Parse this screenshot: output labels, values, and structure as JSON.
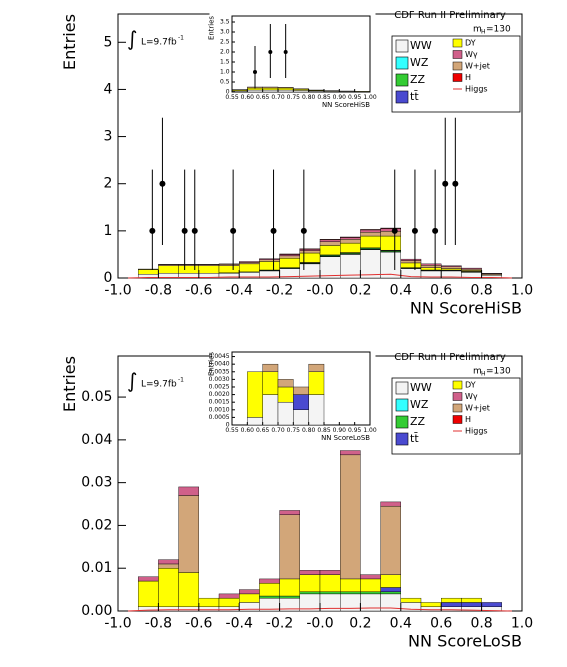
{
  "chart_data": [
    {
      "type": "histogram",
      "title": "CDF Run II Preliminary",
      "x_label": "NN ScoreHiSB",
      "y_label": "Entries",
      "integral": "∫",
      "lumi": "L=9.7fb",
      "lumi_sup": "-1",
      "mass_label": "m",
      "mass_sub": "H",
      "mass_value": "=130",
      "xlim": [
        -1,
        1
      ],
      "ylim": [
        0,
        5.6
      ],
      "xticks": [
        {
          "value": -1,
          "label": "-1.0"
        },
        -0.8,
        -0.6,
        -0.4,
        -0.2,
        {
          "value": 0,
          "label": "-0.0"
        },
        0.2,
        0.4,
        0.6,
        0.8,
        {
          "value": 1,
          "label": "1.0"
        }
      ],
      "yticks": [
        0,
        1,
        2,
        3,
        4,
        5
      ],
      "bins": [
        -1,
        -0.9,
        -0.8,
        -0.7,
        -0.6,
        -0.5,
        -0.4,
        -0.3,
        -0.2,
        -0.1,
        0,
        0.1,
        0.2,
        0.3,
        0.4,
        0.5,
        0.6,
        0.7,
        0.8,
        0.9,
        1
      ],
      "series": [
        {
          "name": "WW",
          "color": "#f4f4f4",
          "values": [
            0,
            0.08,
            0.1,
            0.1,
            0.1,
            0.1,
            0.12,
            0.15,
            0.2,
            0.3,
            0.45,
            0.5,
            0.6,
            0.55,
            0.2,
            0.15,
            0.15,
            0.12,
            0.06,
            0
          ]
        },
        {
          "name": "WZ",
          "color": "#33ffff",
          "values": [
            0,
            0,
            0,
            0,
            0,
            0,
            0,
            0.01,
            0.01,
            0.01,
            0.01,
            0.01,
            0.01,
            0.01,
            0,
            0,
            0,
            0,
            0,
            0
          ]
        },
        {
          "name": "ZZ",
          "color": "#33cc33",
          "values": [
            0,
            0,
            0,
            0,
            0,
            0.01,
            0.01,
            0.01,
            0.01,
            0.01,
            0.02,
            0.02,
            0.02,
            0.02,
            0.01,
            0.01,
            0.01,
            0.01,
            0,
            0
          ]
        },
        {
          "name": "tt̄",
          "color": "#4a4ad0",
          "values": [
            0,
            0,
            0,
            0,
            0,
            0,
            0,
            0,
            0,
            0.01,
            0.01,
            0.01,
            0.01,
            0.01,
            0.01,
            0.01,
            0.01,
            0.01,
            0,
            0
          ]
        },
        {
          "name": "DY",
          "color": "#ffff00",
          "values": [
            0,
            0.1,
            0.16,
            0.16,
            0.16,
            0.15,
            0.17,
            0.18,
            0.2,
            0.2,
            0.2,
            0.2,
            0.25,
            0.3,
            0.1,
            0.05,
            0.03,
            0.02,
            0.01,
            0
          ]
        },
        {
          "name": "W+jet",
          "color": "#d2a679",
          "values": [
            0,
            0.01,
            0.02,
            0.02,
            0.02,
            0.03,
            0.03,
            0.04,
            0.05,
            0.05,
            0.08,
            0.08,
            0.08,
            0.1,
            0.05,
            0.05,
            0.04,
            0.03,
            0.02,
            0
          ]
        },
        {
          "name": "Wγ",
          "color": "#d0608a",
          "values": [
            0,
            0,
            0.01,
            0.01,
            0.01,
            0.01,
            0.02,
            0.02,
            0.03,
            0.03,
            0.04,
            0.04,
            0.05,
            0.06,
            0.03,
            0.03,
            0.02,
            0.02,
            0.01,
            0
          ]
        },
        {
          "name": "H",
          "color": "#ee0000",
          "values": [
            0,
            0,
            0,
            0,
            0,
            0,
            0,
            0,
            0.01,
            0.01,
            0.01,
            0.01,
            0.01,
            0.01,
            0,
            0,
            0,
            0,
            0,
            0
          ]
        },
        {
          "name": "Higgs",
          "color": "#e03030",
          "style": "line",
          "values": [
            0,
            0.01,
            0.01,
            0.01,
            0.01,
            0.02,
            0.02,
            0.02,
            0.03,
            0.04,
            0.05,
            0.06,
            0.07,
            0.08,
            0.03,
            0.02,
            0.02,
            0.01,
            0.01,
            0
          ]
        }
      ],
      "points": {
        "x": [
          -0.83,
          -0.78,
          -0.67,
          -0.62,
          -0.43,
          -0.23,
          -0.08,
          0.37,
          0.47,
          0.57,
          0.62,
          0.67
        ],
        "y": [
          1,
          2,
          1,
          1,
          1,
          1,
          1,
          1,
          1,
          1,
          2,
          2
        ],
        "err_low": [
          0.83,
          1.3,
          0.83,
          0.83,
          0.83,
          0.83,
          0.83,
          0.83,
          0.83,
          0.83,
          1.3,
          1.3
        ],
        "err_high": [
          1.3,
          1.4,
          1.3,
          1.3,
          1.3,
          1.3,
          1.3,
          1.3,
          1.3,
          1.3,
          1.4,
          1.4
        ]
      },
      "inset": {
        "x_label": "NN ScoreHiSB",
        "y_label": "Entries",
        "xlim": [
          0.55,
          1
        ],
        "ylim": [
          0,
          3.8
        ],
        "xticks": [
          0.55,
          {
            "value": 0.6,
            "label": "0.60"
          },
          0.65,
          {
            "value": 0.7,
            "label": "0.70"
          },
          0.75,
          {
            "value": 0.8,
            "label": "0.80"
          },
          0.85,
          {
            "value": 0.9,
            "label": "0.90"
          },
          0.95,
          {
            "value": 1,
            "label": "1.00"
          }
        ],
        "yticks": [
          0,
          0.5,
          {
            "value": 1,
            "label": "1.0"
          },
          1.5,
          {
            "value": 2,
            "label": "2.0"
          },
          2.5,
          {
            "value": 3,
            "label": "3.0"
          },
          3.5
        ],
        "bins": [
          0.55,
          0.6,
          0.65,
          0.7,
          0.75,
          0.8,
          0.85,
          0.9,
          0.95,
          1
        ],
        "series": [
          {
            "color": "#f4f4f4",
            "values": [
              0.05,
              0.1,
              0.1,
              0.1,
              0.08,
              0.05,
              0.04,
              0.03,
              0.02
            ]
          },
          {
            "color": "#ffff00",
            "values": [
              0.05,
              0.1,
              0.1,
              0.1,
              0.06,
              0.03,
              0.02,
              0.01,
              0.01
            ]
          },
          {
            "color": "#d2a679",
            "values": [
              0.02,
              0.05,
              0.05,
              0.04,
              0.03,
              0.02,
              0.01,
              0.01,
              0
            ]
          }
        ],
        "points": {
          "x": [
            0.625,
            0.675,
            0.725
          ],
          "y": [
            1,
            2,
            2
          ],
          "err_low": [
            0.83,
            1.3,
            1.3
          ],
          "err_high": [
            1.3,
            1.4,
            1.4
          ]
        }
      }
    },
    {
      "type": "histogram",
      "title": "CDF Run II Preliminary",
      "x_label": "NN ScoreLoSB",
      "y_label": "Entries",
      "integral": "∫",
      "lumi": "L=9.7fb",
      "lumi_sup": "-1",
      "mass_label": "m",
      "mass_sub": "H",
      "mass_value": "=130",
      "xlim": [
        -1,
        1
      ],
      "ylim": [
        0,
        0.0596
      ],
      "xticks": [
        {
          "value": -1,
          "label": "-1.0"
        },
        -0.8,
        -0.6,
        -0.4,
        -0.2,
        {
          "value": 0,
          "label": "-0.0"
        },
        0.2,
        0.4,
        0.6,
        0.8,
        {
          "value": 1,
          "label": "1.0"
        }
      ],
      "yticks": [
        {
          "value": 0,
          "label": "0.00"
        },
        0.01,
        0.02,
        0.03,
        0.04,
        0.05
      ],
      "bins": [
        -1,
        -0.9,
        -0.8,
        -0.7,
        -0.6,
        -0.5,
        -0.4,
        -0.3,
        -0.2,
        -0.1,
        0,
        0.1,
        0.2,
        0.3,
        0.4,
        0.5,
        0.6,
        0.7,
        0.8,
        0.9,
        1
      ],
      "series": [
        {
          "name": "WW",
          "color": "#f4f4f4",
          "values": [
            0,
            0.001,
            0.001,
            0.001,
            0.001,
            0.001,
            0.002,
            0.003,
            0.003,
            0.004,
            0.004,
            0.004,
            0.004,
            0.004,
            0.002,
            0.001,
            0.001,
            0.001,
            0.001,
            0
          ]
        },
        {
          "name": "WZ",
          "color": "#33ffff",
          "values": [
            0,
            0,
            0,
            0,
            0,
            0,
            0,
            0,
            0,
            0,
            0,
            0,
            0,
            0,
            0,
            0,
            0,
            0,
            0,
            0
          ]
        },
        {
          "name": "ZZ",
          "color": "#33cc33",
          "values": [
            0,
            0,
            0,
            0,
            0,
            0,
            0,
            0.0005,
            0.0005,
            0.0005,
            0.0005,
            0.0005,
            0.0005,
            0.0005,
            0,
            0,
            0,
            0,
            0,
            0
          ]
        },
        {
          "name": "tt̄",
          "color": "#4a4ad0",
          "values": [
            0,
            0,
            0,
            0,
            0,
            0,
            0,
            0,
            0,
            0,
            0,
            0,
            0,
            0.001,
            0,
            0,
            0.001,
            0.001,
            0.001,
            0
          ]
        },
        {
          "name": "DY",
          "color": "#ffff00",
          "values": [
            0,
            0.006,
            0.009,
            0.008,
            0.002,
            0.002,
            0.002,
            0.003,
            0.004,
            0.004,
            0.004,
            0.003,
            0.003,
            0.003,
            0.001,
            0.001,
            0.001,
            0.001,
            0,
            0
          ]
        },
        {
          "name": "W+jet",
          "color": "#d2a679",
          "values": [
            0,
            0,
            0.001,
            0.018,
            0,
            0,
            0,
            0,
            0.015,
            0,
            0,
            0.029,
            0,
            0.016,
            0,
            0,
            0,
            0,
            0,
            0
          ]
        },
        {
          "name": "Wγ",
          "color": "#d0608a",
          "values": [
            0,
            0.001,
            0.001,
            0.002,
            0,
            0.001,
            0.001,
            0.001,
            0.001,
            0.001,
            0.001,
            0.001,
            0.001,
            0.001,
            0,
            0,
            0,
            0,
            0,
            0
          ]
        },
        {
          "name": "H",
          "color": "#ee0000",
          "values": [
            0,
            0,
            0,
            0,
            0,
            0,
            0,
            0,
            0,
            0,
            0,
            0,
            0,
            0,
            0,
            0,
            0,
            0,
            0,
            0
          ]
        },
        {
          "name": "Higgs",
          "color": "#e03030",
          "style": "line",
          "values": [
            0,
            0.0002,
            0.0003,
            0.0003,
            0.0003,
            0.0003,
            0.0004,
            0.0004,
            0.0005,
            0.0005,
            0.0006,
            0.0006,
            0.0007,
            0.0007,
            0.0004,
            0.0003,
            0.0003,
            0.0002,
            0.0001,
            0
          ]
        }
      ],
      "inset": {
        "x_label": "NN ScoreLoSB",
        "y_label": "Entries",
        "xlim": [
          0.55,
          1
        ],
        "ylim": [
          0,
          0.0048
        ],
        "xticks": [
          0.55,
          {
            "value": 0.6,
            "label": "0.60"
          },
          0.65,
          {
            "value": 0.7,
            "label": "0.70"
          },
          0.75,
          {
            "value": 0.8,
            "label": "0.80"
          },
          0.85,
          {
            "value": 0.9,
            "label": "0.90"
          },
          0.95,
          {
            "value": 1,
            "label": "1.00"
          }
        ],
        "yticks": [
          0,
          0.0005,
          {
            "value": 0.001,
            "label": "0.0010"
          },
          0.0015,
          {
            "value": 0.002,
            "label": "0.0020"
          },
          0.0025,
          {
            "value": 0.003,
            "label": "0.0030"
          },
          0.0035,
          {
            "value": 0.004,
            "label": "0.0040"
          },
          0.0045
        ],
        "bins": [
          0.55,
          0.6,
          0.65,
          0.7,
          0.75,
          0.8,
          0.85,
          0.9,
          0.95,
          1
        ],
        "series": [
          {
            "color": "#f4f4f4",
            "values": [
              0,
              0.0005,
              0.002,
              0.0015,
              0.001,
              0.002,
              0,
              0,
              0
            ]
          },
          {
            "color": "#4a4ad0",
            "values": [
              0,
              0,
              0,
              0,
              0.001,
              0,
              0,
              0,
              0
            ]
          },
          {
            "color": "#ffff00",
            "values": [
              0,
              0.003,
              0.0015,
              0.001,
              0,
              0.0015,
              0,
              0,
              0
            ]
          },
          {
            "color": "#d2a679",
            "values": [
              0,
              0,
              0.0005,
              0.0005,
              0.0005,
              0.0005,
              0,
              0,
              0
            ]
          }
        ]
      }
    }
  ]
}
